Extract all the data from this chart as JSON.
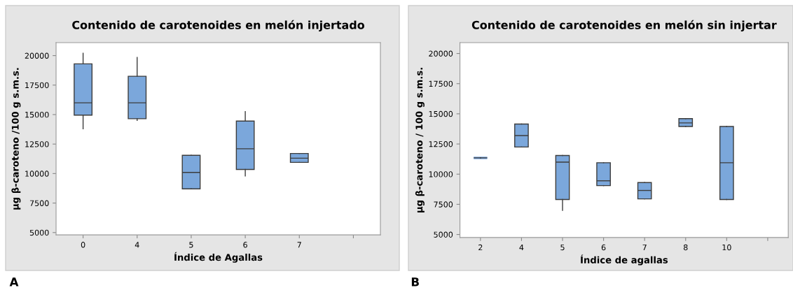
{
  "chart_data": [
    {
      "type": "box",
      "title": "Contenido de carotenoides en melón injertado",
      "xlabel": "Índice de Agallas",
      "ylabel": "µg β-caroteno /100 g s.m.s.",
      "categories": [
        "0",
        "4",
        "5",
        "6",
        "7",
        null
      ],
      "color": "#7ba7db",
      "ylim": [
        4800,
        21100
      ],
      "yticks": [
        5000,
        7500,
        10000,
        12500,
        15000,
        17500,
        20000
      ],
      "grid": false,
      "legend": false,
      "annotations": [
        "A"
      ],
      "boxes": [
        {
          "low": 13800,
          "q1": 14950,
          "median": 16000,
          "q3": 19300,
          "high": 20200
        },
        {
          "low": 14500,
          "q1": 14650,
          "median": 16000,
          "q3": 18250,
          "high": 19850
        },
        {
          "low": 8700,
          "q1": 8700,
          "median": 10100,
          "q3": 11550,
          "high": 11550
        },
        {
          "low": 9800,
          "q1": 10350,
          "median": 12100,
          "q3": 14450,
          "high": 15250
        },
        {
          "low": 10950,
          "q1": 10950,
          "median": 11300,
          "q3": 11700,
          "high": 11700
        },
        null
      ]
    },
    {
      "type": "box",
      "title": "Contenido de carotenoides en melón sin injertar",
      "xlabel": "Índice de agallas",
      "ylabel": "µg β-caroteno / 100 g s.m.s.",
      "categories": [
        "2",
        "4",
        "5",
        "6",
        "7",
        "8",
        "10",
        null
      ],
      "color": "#7ba7db",
      "ylim": [
        4750,
        20900
      ],
      "yticks": [
        5000,
        7500,
        10000,
        12500,
        15000,
        17500,
        20000
      ],
      "grid": false,
      "legend": false,
      "annotations": [
        "B"
      ],
      "boxes": [
        {
          "low": 11350,
          "q1": 11350,
          "median": 11350,
          "q3": 11350,
          "high": 11350
        },
        {
          "low": 12250,
          "q1": 12250,
          "median": 13200,
          "q3": 14150,
          "high": 14150
        },
        {
          "low": 7000,
          "q1": 7900,
          "median": 11000,
          "q3": 11550,
          "high": 11550
        },
        {
          "low": 9050,
          "q1": 9050,
          "median": 9450,
          "q3": 10950,
          "high": 10950
        },
        {
          "low": 7950,
          "q1": 7950,
          "median": 8650,
          "q3": 9300,
          "high": 9300
        },
        {
          "low": 13950,
          "q1": 13950,
          "median": 14250,
          "q3": 14600,
          "high": 14600
        },
        {
          "low": 7900,
          "q1": 7900,
          "median": 10950,
          "q3": 13950,
          "high": 13950
        },
        null
      ]
    }
  ]
}
